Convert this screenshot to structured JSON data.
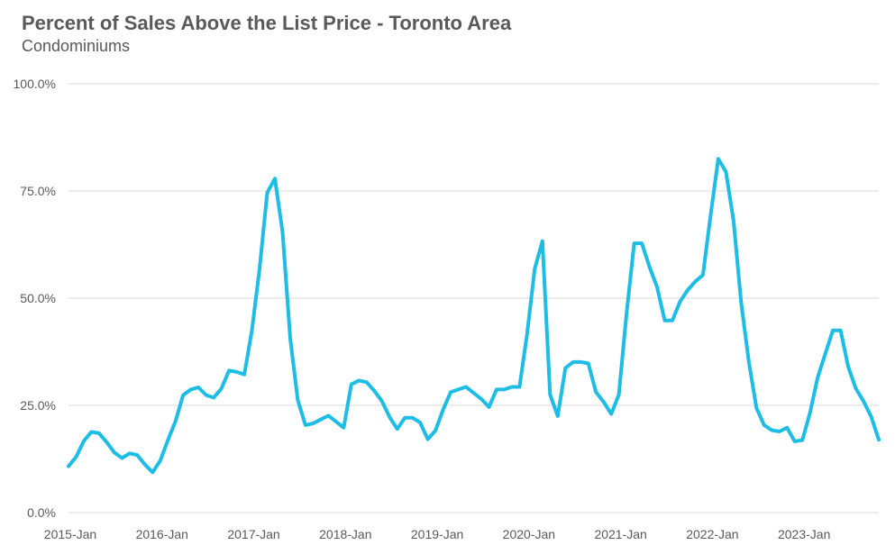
{
  "chart_data": {
    "type": "line",
    "title": "Percent of Sales Above the List Price - Toronto Area",
    "subtitle": "Condominiums",
    "xlabel": "",
    "ylabel": "",
    "ylim": [
      0,
      100
    ],
    "y_ticks": [
      "0.0%",
      "25.0%",
      "50.0%",
      "75.0%",
      "100.0%"
    ],
    "y_tick_values": [
      0,
      25,
      50,
      75,
      100
    ],
    "x_ticks": [
      "2015-Jan",
      "2016-Jan",
      "2017-Jan",
      "2018-Jan",
      "2019-Jan",
      "2020-Jan",
      "2021-Jan",
      "2022-Jan",
      "2023-Jan"
    ],
    "x_start": "2015-01",
    "grid": true,
    "legend": "none",
    "line_color": "#1dbde6",
    "series": [
      {
        "values": [
          10.8,
          13.0,
          16.7,
          18.8,
          18.5,
          16.4,
          14.0,
          12.7,
          13.8,
          13.4,
          11.2,
          9.4,
          12.1,
          16.9,
          21.3,
          27.4,
          28.7,
          29.2,
          27.4,
          26.8,
          28.9,
          33.1,
          32.8,
          32.2,
          42.5,
          56.9,
          74.6,
          77.9,
          65.4,
          40.6,
          26.2,
          20.4,
          20.8,
          21.7,
          22.6,
          21.2,
          19.8,
          29.9,
          30.8,
          30.4,
          28.4,
          26.0,
          22.3,
          19.5,
          22.1,
          22.1,
          21.0,
          17.1,
          19.1,
          24.0,
          28.1,
          28.7,
          29.3,
          27.9,
          26.5,
          24.6,
          28.7,
          28.7,
          29.3,
          29.3,
          41.8,
          56.9,
          63.3,
          27.5,
          22.5,
          33.7,
          35.1,
          35.1,
          34.8,
          28.1,
          25.8,
          23.0,
          27.5,
          46.3,
          62.8,
          62.8,
          57.3,
          52.6,
          44.8,
          44.8,
          49.2,
          51.9,
          53.9,
          55.4,
          69.3,
          82.5,
          79.5,
          68.0,
          49.0,
          35.2,
          24.4,
          20.4,
          19.2,
          18.9,
          19.8,
          16.6,
          16.9,
          23.3,
          31.5,
          37.0,
          42.5,
          42.5,
          34.0,
          28.9,
          26.0,
          22.4,
          17.0
        ]
      }
    ]
  }
}
